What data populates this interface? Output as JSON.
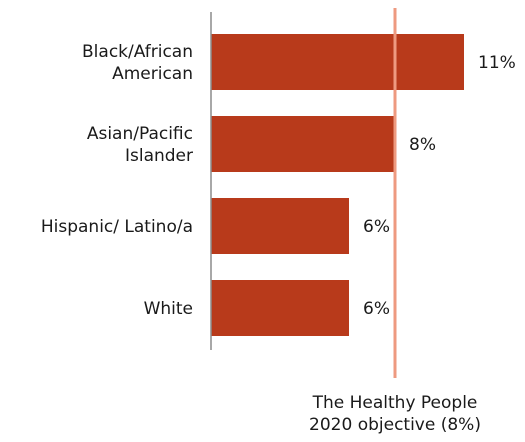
{
  "chart_data": {
    "type": "bar",
    "orientation": "horizontal",
    "categories": [
      [
        "Black/African",
        "American"
      ],
      [
        "Asian/Pacific",
        "Islander"
      ],
      [
        "Hispanic/ Latino/a"
      ],
      [
        "White"
      ]
    ],
    "values": [
      11,
      8,
      6,
      6
    ],
    "value_labels": [
      "11%",
      "8%",
      "6%",
      "6%"
    ],
    "bar_color": "#b83a1b",
    "axis_color": "#8c8c8c",
    "xlim": [
      0,
      11.5
    ],
    "reference_line": {
      "value": 8,
      "color": "#ee9a80",
      "label": [
        "The Healthy People",
        "2020 objective (8%)"
      ]
    },
    "grid": false,
    "legend": "none"
  }
}
